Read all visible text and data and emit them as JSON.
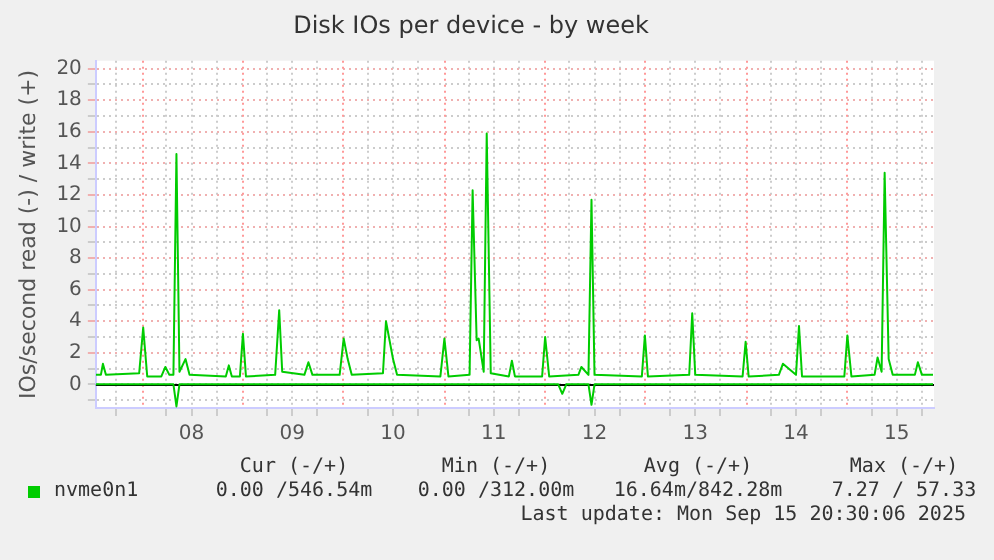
{
  "chart_data": {
    "type": "line",
    "title": "Disk IOs per device - by week",
    "ylabel": "IOs/second read (-) / write (+)",
    "series": [
      {
        "name": "nvme0n1",
        "color": "#00cc00",
        "x": [
          7.55,
          7.6,
          7.62,
          7.65,
          7.98,
          8.02,
          8.06,
          8.2,
          8.24,
          8.28,
          8.32,
          8.35,
          8.38,
          8.44,
          8.48,
          8.84,
          8.87,
          8.9,
          8.98,
          9.01,
          9.04,
          9.33,
          9.37,
          9.4,
          9.62,
          9.66,
          9.7,
          9.97,
          10.01,
          10.05,
          10.09,
          10.4,
          10.43,
          10.5,
          10.54,
          10.97,
          11.01,
          11.05,
          11.26,
          11.29,
          11.33,
          11.35,
          11.4,
          11.43,
          11.47,
          11.65,
          11.68,
          11.71,
          11.98,
          12.01,
          12.05,
          12.34,
          12.37,
          12.44,
          12.47,
          12.5,
          12.97,
          13.0,
          13.03,
          13.44,
          13.47,
          13.5,
          13.97,
          14.0,
          14.03,
          14.33,
          14.37,
          14.5,
          14.53,
          14.56,
          14.98,
          15.01,
          15.05,
          15.28,
          15.31,
          15.35,
          15.38,
          15.42,
          15.46,
          15.68,
          15.71,
          15.75,
          15.86
        ],
        "values": [
          0.6,
          0.6,
          1.3,
          0.6,
          0.7,
          3.6,
          0.5,
          0.5,
          1.1,
          0.6,
          0.6,
          14.6,
          0.8,
          1.6,
          0.6,
          0.5,
          1.2,
          0.5,
          0.5,
          3.2,
          0.5,
          0.6,
          4.7,
          0.8,
          0.6,
          1.4,
          0.6,
          0.6,
          2.9,
          1.6,
          0.6,
          0.7,
          4.0,
          1.6,
          0.6,
          0.5,
          2.9,
          0.5,
          0.6,
          12.3,
          2.8,
          2.9,
          0.8,
          15.9,
          0.7,
          0.5,
          1.5,
          0.5,
          0.5,
          3.0,
          0.5,
          0.6,
          1.1,
          0.6,
          11.7,
          0.6,
          0.5,
          3.1,
          0.5,
          0.6,
          4.5,
          0.6,
          0.5,
          2.7,
          0.5,
          0.6,
          1.3,
          0.6,
          3.7,
          0.5,
          0.5,
          3.1,
          0.5,
          0.6,
          1.7,
          0.8,
          13.4,
          1.6,
          0.6,
          0.6,
          1.4,
          0.6,
          0.6
        ]
      },
      {
        "color": "#00cc00",
        "x": [
          7.55,
          8.32,
          8.35,
          8.38,
          12.14,
          12.18,
          12.22,
          12.44,
          12.47,
          12.5,
          15.86
        ],
        "values": [
          0,
          0,
          -1.4,
          0,
          0,
          -0.6,
          0,
          0,
          -1.3,
          0,
          0
        ]
      }
    ],
    "xlim": [
      7.55,
      15.87
    ],
    "ylim": [
      -1.5,
      20.5
    ],
    "xticks": [
      {
        "value": 7.75,
        "label": null
      },
      {
        "value": 8.25,
        "label": null
      },
      {
        "value": 8.5,
        "label": "08"
      },
      {
        "value": 8.75,
        "label": null
      },
      {
        "value": 9.25,
        "label": null
      },
      {
        "value": 9.5,
        "label": "09"
      },
      {
        "value": 9.75,
        "label": null
      },
      {
        "value": 10.25,
        "label": null
      },
      {
        "value": 10.5,
        "label": "10"
      },
      {
        "value": 10.75,
        "label": null
      },
      {
        "value": 11.25,
        "label": null
      },
      {
        "value": 11.5,
        "label": "11"
      },
      {
        "value": 11.75,
        "label": null
      },
      {
        "value": 12.25,
        "label": null
      },
      {
        "value": 12.5,
        "label": "12"
      },
      {
        "value": 12.75,
        "label": null
      },
      {
        "value": 13.25,
        "label": null
      },
      {
        "value": 13.5,
        "label": "13"
      },
      {
        "value": 13.75,
        "label": null
      },
      {
        "value": 14.25,
        "label": null
      },
      {
        "value": 14.5,
        "label": "14"
      },
      {
        "value": 14.75,
        "label": null
      },
      {
        "value": 15.25,
        "label": null
      },
      {
        "value": 15.5,
        "label": "15"
      },
      {
        "value": 15.75,
        "label": null
      }
    ],
    "yticks": [
      {
        "value": -1,
        "label": null
      },
      0,
      {
        "value": 1,
        "label": null
      },
      2,
      {
        "value": 3,
        "label": null
      },
      4,
      {
        "value": 5,
        "label": null
      },
      6,
      {
        "value": 7,
        "label": null
      },
      8,
      {
        "value": 9,
        "label": null
      },
      10,
      {
        "value": 11,
        "label": null
      },
      12,
      {
        "value": 13,
        "label": null
      },
      14,
      {
        "value": 15,
        "label": null
      },
      16,
      {
        "value": 17,
        "label": null
      },
      18,
      {
        "value": 19,
        "label": null
      },
      20
    ],
    "grid": true,
    "legend": "bottom",
    "marker": "none",
    "line_style": "solid",
    "ref_lines": [
      {
        "axis": "x",
        "value": 8,
        "color": "#ff9999",
        "line_style": "dotted"
      },
      {
        "axis": "x",
        "value": 9,
        "color": "#ff9999",
        "line_style": "dotted"
      },
      {
        "axis": "x",
        "value": 10,
        "color": "#ff9999",
        "line_style": "dotted"
      },
      {
        "axis": "x",
        "value": 11,
        "color": "#ff9999",
        "line_style": "dotted"
      },
      {
        "axis": "x",
        "value": 12,
        "color": "#ff9999",
        "line_style": "dotted"
      },
      {
        "axis": "x",
        "value": 13,
        "color": "#ff9999",
        "line_style": "dotted"
      },
      {
        "axis": "x",
        "value": 14,
        "color": "#ff9999",
        "line_style": "dotted"
      },
      {
        "axis": "x",
        "value": 15,
        "color": "#ff9999",
        "line_style": "dotted"
      },
      {
        "axis": "y",
        "value": 0,
        "color": "#000000",
        "line_style": "solid"
      }
    ],
    "annotations": [
      "Cur (-/+)",
      "Min (-/+)",
      "Avg (-/+)",
      "Max (-/+)",
      "0.00 /546.54m",
      "0.00 /312.00m",
      "16.64m/842.28m",
      "7.27 / 57.33",
      "Last update: Mon Sep 15 20:30:06 2025"
    ]
  }
}
